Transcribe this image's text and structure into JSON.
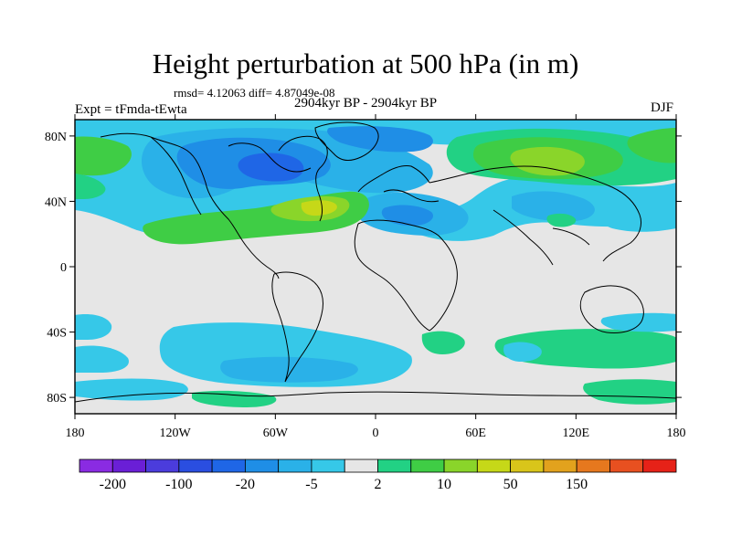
{
  "header": {
    "title": "Height perturbation at 500 hPa (in m)",
    "stats": "rmsd= 4.12063 diff= 4.87049e-08",
    "period": "2904kyr BP - 2904kyr BP",
    "experiment": "Expt = tFmda-tEwta",
    "season": "DJF"
  },
  "map": {
    "lon_range": [
      -180,
      180
    ],
    "lat_range": [
      -90,
      90
    ],
    "lat_ticks": [
      {
        "label": "80N",
        "lat": 80
      },
      {
        "label": "40N",
        "lat": 40
      },
      {
        "label": "0",
        "lat": 0
      },
      {
        "label": "40S",
        "lat": -40
      },
      {
        "label": "80S",
        "lat": -80
      }
    ],
    "lon_ticks": [
      {
        "label": "180",
        "lon": -180
      },
      {
        "label": "120W",
        "lon": -120
      },
      {
        "label": "60W",
        "lon": -60
      },
      {
        "label": "0",
        "lon": 0
      },
      {
        "label": "60E",
        "lon": 60
      },
      {
        "label": "120E",
        "lon": 120
      },
      {
        "label": "180",
        "lon": 180
      }
    ],
    "background_color": "#e6e6e6",
    "coastline_color": "#000000"
  },
  "colorbar": {
    "colors": [
      "#8a2be2",
      "#6a1fd6",
      "#4b3cdc",
      "#2a4ee0",
      "#1f66e6",
      "#1f8ee6",
      "#2ab1e8",
      "#36c8e8",
      "#e6e6e6",
      "#22d184",
      "#3fcd45",
      "#8ad52a",
      "#c6d818",
      "#d9c51a",
      "#e2a21d",
      "#e6781e",
      "#e85020",
      "#e62218"
    ],
    "labels": [
      {
        "text": "-200",
        "boundary": 1
      },
      {
        "text": "-100",
        "boundary": 3
      },
      {
        "text": "-20",
        "boundary": 5
      },
      {
        "text": "-5",
        "boundary": 7
      },
      {
        "text": "2",
        "boundary": 9
      },
      {
        "text": "10",
        "boundary": 11
      },
      {
        "text": "50",
        "boundary": 13
      },
      {
        "text": "150",
        "boundary": 15
      }
    ]
  },
  "palette": {
    "blue_dark": "#1f66e6",
    "blue_mid": "#1f8ee6",
    "blue_light": "#2ab1e8",
    "cyan": "#36c8e8",
    "teal_green": "#22d184",
    "green": "#3fcd45",
    "lime": "#8ad52a",
    "yellow_green": "#c6d818"
  }
}
